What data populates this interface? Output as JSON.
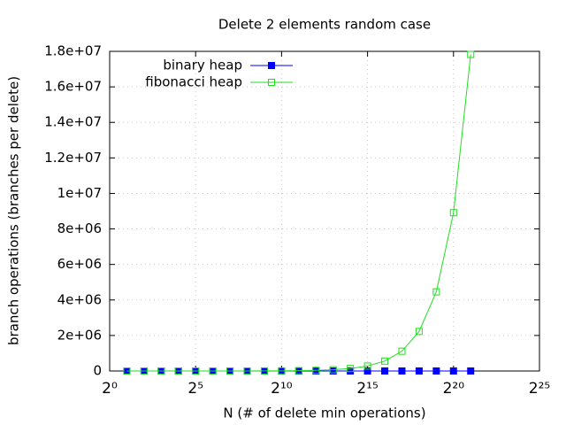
{
  "chart_data": {
    "type": "line",
    "title": "Delete 2 elements random case",
    "xlabel": "N (# of delete min operations)",
    "ylabel": "branch operations (branches per delete)",
    "xscale_log_base": 2,
    "x": [
      2,
      4,
      8,
      16,
      32,
      64,
      128,
      256,
      512,
      1024,
      2048,
      4096,
      8192,
      16384,
      32768,
      65536,
      131072,
      262144,
      524288,
      1048576,
      2097152
    ],
    "series": [
      {
        "name": "binary heap",
        "color": "#0000ff",
        "marker": "filled-square",
        "values": [
          5,
          9,
          14,
          18,
          23,
          27,
          32,
          37,
          41,
          46,
          50,
          55,
          60,
          64,
          69,
          73,
          78,
          83,
          87,
          92,
          96
        ]
      },
      {
        "name": "fibonacci heap",
        "color": "#22dd22",
        "marker": "open-square",
        "values": [
          17,
          34,
          68,
          136,
          272,
          544,
          1088,
          2176,
          4352,
          8704,
          17408,
          34816,
          69632,
          139264,
          278528,
          557056,
          1114112,
          2228224,
          4456448,
          8912896,
          17825792
        ]
      }
    ],
    "xlim": [
      1,
      33554432
    ],
    "xticks": [
      {
        "value": 1,
        "label": "2⁰"
      },
      {
        "value": 32,
        "label": "2⁵"
      },
      {
        "value": 1024,
        "label": "2¹⁰"
      },
      {
        "value": 32768,
        "label": "2¹⁵"
      },
      {
        "value": 1048576,
        "label": "2²⁰"
      },
      {
        "value": 33554432,
        "label": "2²⁵"
      }
    ],
    "ylim": [
      0,
      18000000
    ],
    "yticks": [
      0,
      {
        "value": 2000000,
        "label": "2e+06"
      },
      {
        "value": 4000000,
        "label": "4e+06"
      },
      {
        "value": 6000000,
        "label": "6e+06"
      },
      {
        "value": 8000000,
        "label": "8e+06"
      },
      {
        "value": 10000000,
        "label": "1e+07"
      },
      {
        "value": 12000000,
        "label": "1.2e+07"
      },
      {
        "value": 14000000,
        "label": "1.4e+07"
      },
      {
        "value": 16000000,
        "label": "1.6e+07"
      },
      {
        "value": 18000000,
        "label": "1.8e+07"
      }
    ],
    "grid": true,
    "legend_position": "top-left"
  }
}
